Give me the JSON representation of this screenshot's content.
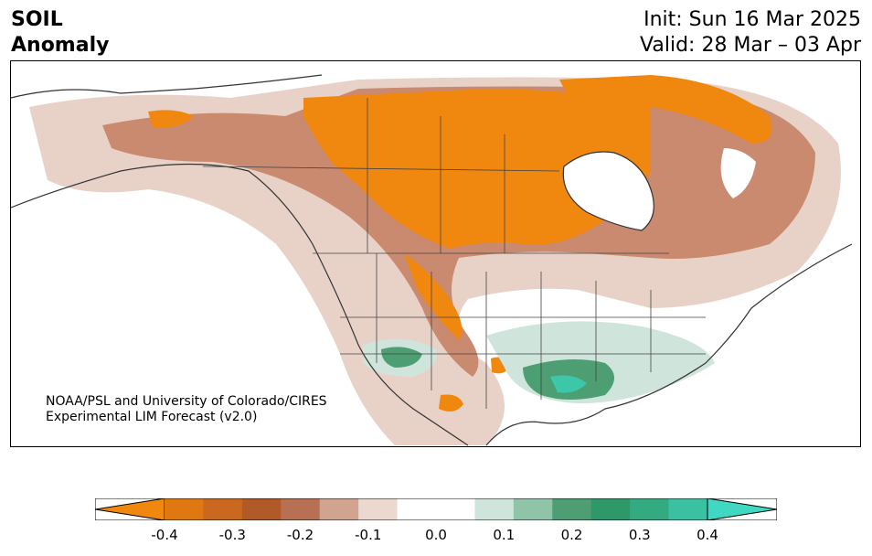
{
  "header": {
    "title_line1": "SOIL",
    "title_line2": "Anomaly",
    "init": "Init: Sun 16 Mar 2025",
    "valid": "Valid: 28 Mar – 03 Apr"
  },
  "credit": {
    "line1": "NOAA/PSL and University of Colorado/CIRES",
    "line2": "Experimental LIM Forecast (v2.0)"
  },
  "colorbar": {
    "colors": [
      "#f0870f",
      "#e07812",
      "#c9681e",
      "#b05a2a",
      "#b87054",
      "#d0a48e",
      "#ebd8cf",
      "#ffffff",
      "#ffffff",
      "#cfe4da",
      "#8fc4a8",
      "#4d9e72",
      "#2e9868",
      "#34aa80",
      "#3cc0a2",
      "#40d8c2"
    ],
    "ticks": [
      "-0.4",
      "-0.3",
      "-0.2",
      "-0.1",
      "0.0",
      "0.1",
      "0.2",
      "0.3",
      "0.4"
    ]
  },
  "legend_colors": {
    "dry_strong": "#f0870f",
    "dry_mid": "#c0652a",
    "dry_weak": "#d8b0a0",
    "wet_weak": "#c6e2d4",
    "wet_mid": "#3e9e6e",
    "wet_strong": "#3cc8a8"
  }
}
